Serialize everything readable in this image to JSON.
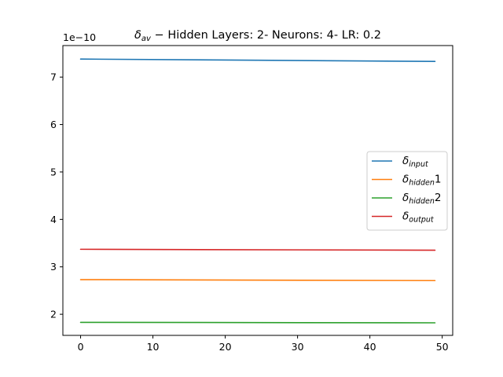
{
  "chart_data": {
    "type": "line",
    "title": {
      "symbol": "δ",
      "subscript": "av",
      "rest": " − Hidden Layers: 2- Neurons: 4- LR: 0.2"
    },
    "xlabel": "",
    "ylabel": "",
    "y_offset_label": "1e−10",
    "xlim": [
      -2.45,
      51.45
    ],
    "ylim": [
      1.555,
      7.665
    ],
    "x_ticks": [
      0,
      10,
      20,
      30,
      40,
      50
    ],
    "y_ticks": [
      2,
      3,
      4,
      5,
      6,
      7
    ],
    "grid": false,
    "legend_position": "center-right",
    "x_start": 0,
    "x_end": 49,
    "series": [
      {
        "symbol": "δ",
        "subscript": "input",
        "suffix": "",
        "color": "#1f77b4",
        "start": 7.38,
        "end": 7.33
      },
      {
        "symbol": "δ",
        "subscript": "hidden",
        "suffix": "1",
        "color": "#ff7f0e",
        "start": 2.73,
        "end": 2.71
      },
      {
        "symbol": "δ",
        "subscript": "hidden",
        "suffix": "2",
        "color": "#2ca02c",
        "start": 1.83,
        "end": 1.82
      },
      {
        "symbol": "δ",
        "subscript": "output",
        "suffix": "",
        "color": "#d62728",
        "start": 3.37,
        "end": 3.35
      }
    ]
  }
}
